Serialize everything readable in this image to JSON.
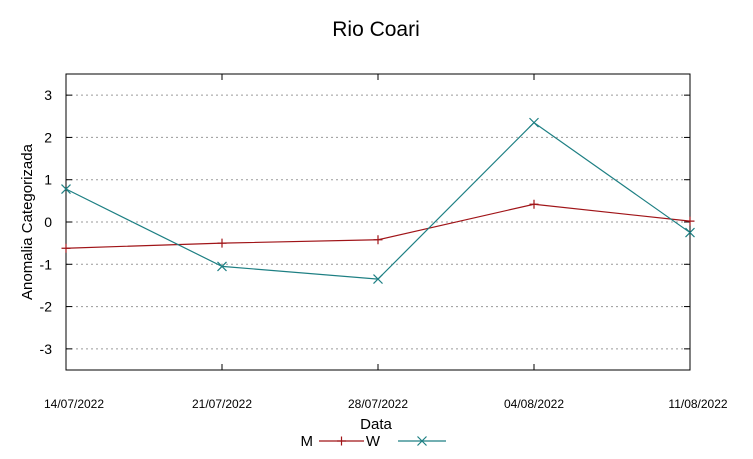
{
  "chart_data": {
    "type": "line",
    "title": "Rio Coari",
    "xlabel": "Data",
    "ylabel": "Anomalia Categorizada",
    "categories": [
      "14/07/2022",
      "21/07/2022",
      "28/07/2022",
      "04/08/2022",
      "11/08/2022"
    ],
    "ylim": [
      -3.5,
      3.5
    ],
    "yticks": [
      "3",
      "2",
      "1",
      "0",
      "-1",
      "-2",
      "-3"
    ],
    "grid": true,
    "legend_position": "bottom",
    "series": [
      {
        "name": "M",
        "color": "#a01418",
        "marker": "plus",
        "values": [
          -0.62,
          -0.5,
          -0.42,
          0.42,
          0.02
        ]
      },
      {
        "name": "W",
        "color": "#1d7f83",
        "marker": "x",
        "values": [
          0.78,
          -1.05,
          -1.35,
          2.35,
          -0.25
        ]
      }
    ]
  }
}
